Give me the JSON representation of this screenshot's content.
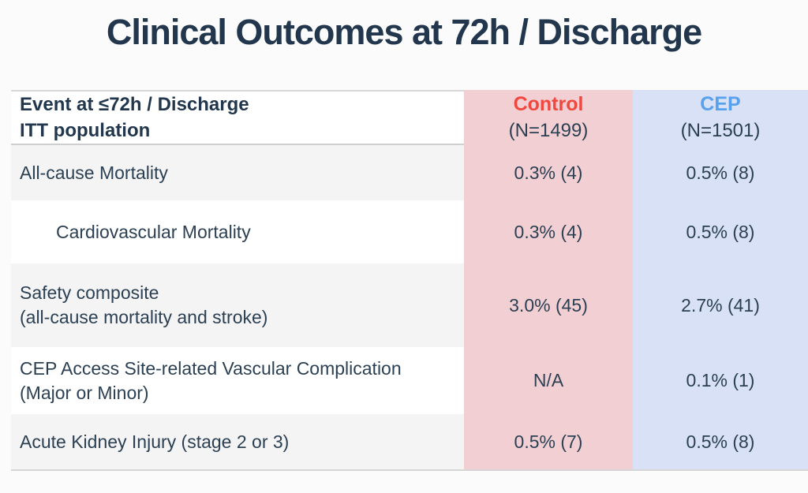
{
  "page": {
    "title": "Clinical Outcomes at 72h / Discharge"
  },
  "table": {
    "header": {
      "event_line1": "Event at ≤72h / Discharge",
      "event_line2": "ITT population",
      "control": {
        "name": "Control",
        "n": "(N=1499)"
      },
      "cep": {
        "name": "CEP",
        "n": "(N=1501)"
      }
    },
    "rows": [
      {
        "label": "All-cause Mortality",
        "control": "0.3% (4)",
        "cep": "0.5% (8)"
      },
      {
        "label": "Cardiovascular Mortality",
        "control": "0.3% (4)",
        "cep": "0.5% (8)"
      },
      {
        "label": "Safety composite",
        "label2": "(all-cause mortality and stroke)",
        "control": "3.0% (45)",
        "cep": "2.7% (41)"
      },
      {
        "label": "CEP Access Site-related Vascular Complication",
        "label2": "(Major or Minor)",
        "control": "N/A",
        "cep": "0.1% (1)"
      },
      {
        "label": "Acute Kidney Injury (stage 2 or 3)",
        "control": "0.5% (7)",
        "cep": "0.5% (8)"
      }
    ],
    "colors": {
      "title_text": "#22374d",
      "body_text": "#2c4053",
      "control_accent": "#f0483f",
      "cep_accent": "#57a1ef",
      "control_column_bg": "#f2cfd3",
      "cep_column_bg": "#d8e1f5",
      "row_stripe_bg": "#f4f4f5",
      "border": "#d6d6d6"
    }
  }
}
